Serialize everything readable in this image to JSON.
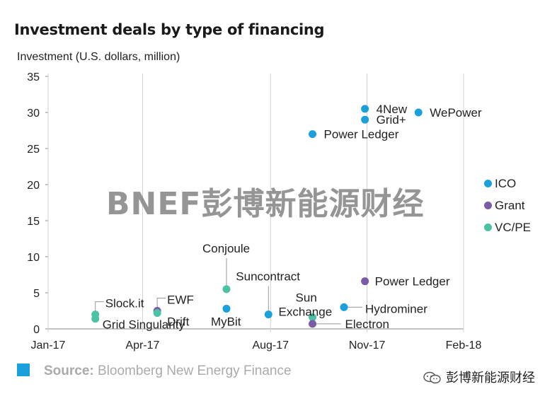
{
  "title": "Investment deals by type of financing",
  "watermark": "BNEF彭博新能源财经",
  "source": {
    "prefix": "Source:",
    "text": " Bloomberg New Energy Finance"
  },
  "wechat_label": "彭博新能源财经",
  "colors": {
    "ICO": "#1aa1dc",
    "Grant": "#7b5aa6",
    "VC/PE": "#4cc2a4",
    "source_square": "#1aa1dc"
  },
  "chart_data": {
    "type": "scatter",
    "title": "Investment deals by type of financing",
    "ylabel": "Investment (U.S. dollars, million)",
    "xlabel": "",
    "x_ticks": [
      "Jan-17",
      "Apr-17",
      "Aug-17",
      "Nov-17",
      "Feb-18"
    ],
    "y_ticks": [
      0,
      5,
      10,
      15,
      20,
      25,
      30,
      35
    ],
    "ylim": [
      0,
      35
    ],
    "xlim": [
      "2017-01-01",
      "2018-02-01"
    ],
    "grid": false,
    "legend": [
      "ICO",
      "Grant",
      "VC/PE"
    ],
    "legend_position": "right",
    "points": [
      {
        "label": "Slock.it",
        "x": "2017-02-15",
        "y": 2.0,
        "type": "VC/PE"
      },
      {
        "label": "Grid Singularity",
        "x": "2017-02-15",
        "y": 1.4,
        "type": "VC/PE"
      },
      {
        "label": "EWF",
        "x": "2017-04-15",
        "y": 2.5,
        "type": "Grant"
      },
      {
        "label": "Drift",
        "x": "2017-04-15",
        "y": 2.2,
        "type": "VC/PE"
      },
      {
        "label": "Conjoule",
        "x": "2017-06-20",
        "y": 5.5,
        "type": "VC/PE"
      },
      {
        "label": "MyBit",
        "x": "2017-06-20",
        "y": 2.8,
        "type": "ICO"
      },
      {
        "label": "Suncontract",
        "x": "2017-07-30",
        "y": 2.0,
        "type": "ICO"
      },
      {
        "label": "Sun Exchange",
        "x": "2017-09-10",
        "y": 1.6,
        "type": "VC/PE"
      },
      {
        "label": "Electron",
        "x": "2017-09-10",
        "y": 0.7,
        "type": "Grant"
      },
      {
        "label": "Hydrominer",
        "x": "2017-10-10",
        "y": 3.0,
        "type": "ICO"
      },
      {
        "label": "Power Ledger",
        "x": "2017-10-30",
        "y": 6.6,
        "type": "Grant"
      },
      {
        "label": "Power Ledger",
        "x": "2017-09-10",
        "y": 27.0,
        "type": "ICO"
      },
      {
        "label": "4New",
        "x": "2017-10-30",
        "y": 30.5,
        "type": "ICO"
      },
      {
        "label": "Grid+",
        "x": "2017-10-30",
        "y": 29.0,
        "type": "ICO"
      },
      {
        "label": "WePower",
        "x": "2017-12-20",
        "y": 30.0,
        "type": "ICO"
      }
    ]
  }
}
